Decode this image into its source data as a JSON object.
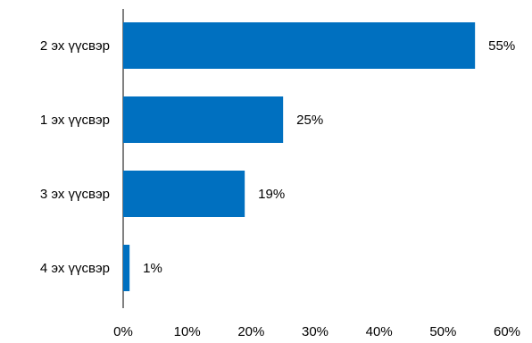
{
  "chart_data": {
    "type": "bar",
    "orientation": "horizontal",
    "categories": [
      "2 эх үүсвэр",
      "1 эх үүсвэр",
      "3 эх үүсвэр",
      "4 эх үүсвэр"
    ],
    "values": [
      55,
      25,
      19,
      1
    ],
    "value_labels": [
      "55%",
      "25%",
      "19%",
      "1%"
    ],
    "xlim": [
      0,
      60
    ],
    "xticks": [
      0,
      10,
      20,
      30,
      40,
      50,
      60
    ],
    "xtick_labels": [
      "0%",
      "10%",
      "20%",
      "30%",
      "40%",
      "50%",
      "60%"
    ],
    "title": "",
    "xlabel": "",
    "ylabel": "",
    "grid": false,
    "legend": "none",
    "bar_color": "#0070C0"
  }
}
